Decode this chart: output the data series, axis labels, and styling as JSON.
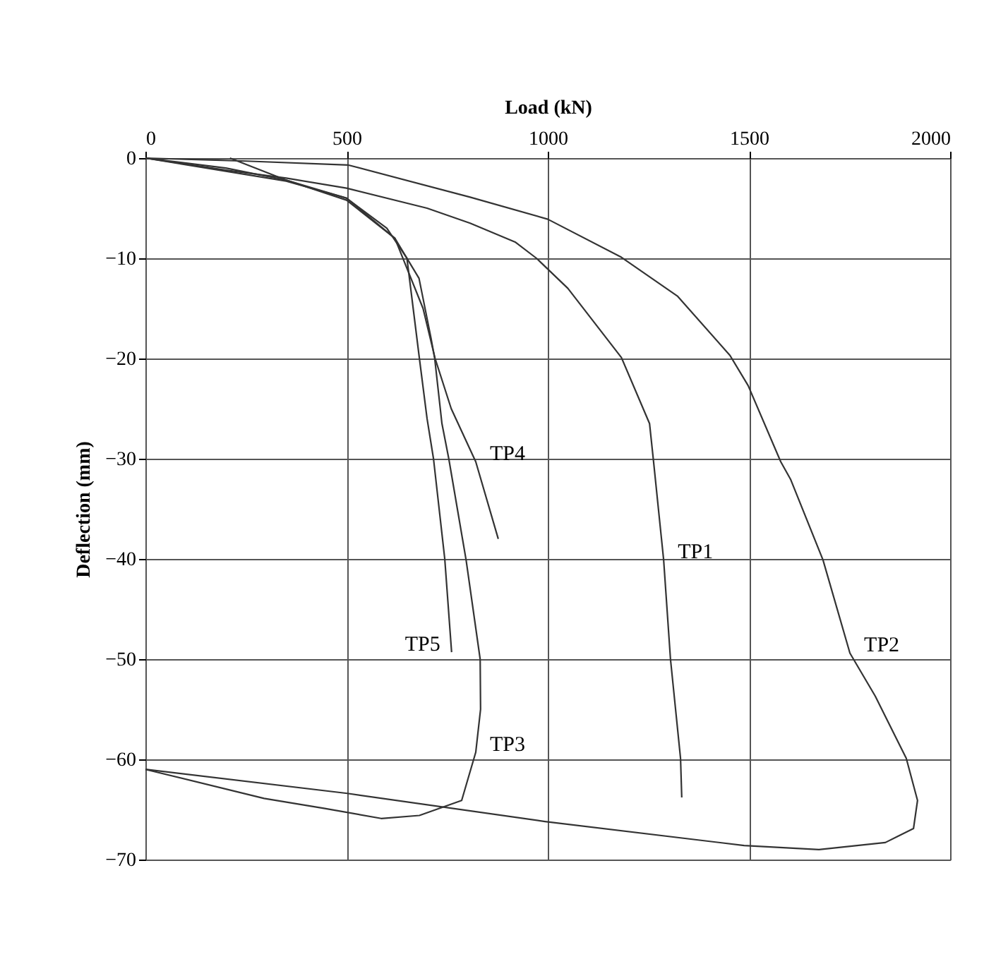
{
  "chart_data": {
    "type": "line",
    "xlabel": "Load (kN)",
    "ylabel": "Deflection (mm)",
    "xlim": [
      0,
      2000
    ],
    "xticks": [
      0,
      500,
      1000,
      1500,
      2000
    ],
    "ylim": [
      -70,
      0
    ],
    "yticks": [
      -70,
      -60,
      -50,
      -40,
      -30,
      -20,
      -10,
      0
    ],
    "grid": true,
    "line_style": "solid",
    "marker": "none",
    "legend": false,
    "series": [
      {
        "color": "#333333",
        "x": [
          0,
          200,
          350,
          500,
          700,
          807,
          920,
          972,
          1050,
          1183,
          1253,
          1263,
          1288,
          1305,
          1330,
          1333
        ],
        "values": [
          0,
          -1.2,
          -2,
          -3,
          -5,
          -6.5,
          -8.4,
          -10,
          -13,
          -19.9,
          -26.5,
          -30.3,
          -40.1,
          -50,
          -59.9,
          -63.8
        ]
      },
      {
        "color": "#333333",
        "x": [
          0,
          250,
          505,
          807,
          1000,
          1183,
          1323,
          1453,
          1498,
          1579,
          1604,
          1684,
          1751,
          1814,
          1891,
          1919,
          1909,
          1839,
          1674,
          1488,
          993,
          502,
          0
        ],
        "values": [
          0,
          -0.3,
          -0.7,
          -3.9,
          -6.1,
          -9.9,
          -13.8,
          -19.7,
          -22.7,
          -30.3,
          -32.1,
          -40.1,
          -49.4,
          -53.7,
          -59.9,
          -64.1,
          -66.9,
          -68.3,
          -69,
          -68.6,
          -66.2,
          -63.4,
          -61
        ]
      },
      {
        "color": "#333333",
        "x": [
          210,
          350,
          500,
          620,
          680,
          710,
          719,
          737,
          754,
          797,
          832,
          833,
          821,
          786,
          681,
          586,
          446,
          295,
          0
        ],
        "values": [
          0,
          -2.2,
          -4.2,
          -8,
          -12,
          -18,
          -20,
          -26.5,
          -30,
          -40.1,
          -50,
          -55,
          -59.3,
          -64.1,
          -65.6,
          -65.9,
          -64.9,
          -63.9,
          -61
        ]
      },
      {
        "color": "#333333",
        "x": [
          0,
          350,
          500,
          620,
          690,
          720,
          760,
          821,
          877
        ],
        "values": [
          0,
          -2.3,
          -4,
          -8,
          -15,
          -20,
          -25,
          -30.3,
          -38
        ]
      },
      {
        "color": "#333333",
        "x": [
          0,
          200,
          350,
          500,
          600,
          650,
          681,
          700,
          716,
          744,
          761
        ],
        "values": [
          0,
          -1,
          -2.2,
          -4,
          -7,
          -10,
          -20,
          -26,
          -30,
          -40,
          -49.3
        ]
      }
    ],
    "annotations": [
      {
        "text": "TP1",
        "x": 1288,
        "y": -40.1
      },
      {
        "text": "TP2",
        "x": 1751,
        "y": -49.4
      },
      {
        "text": "TP3",
        "x": 821,
        "y": -59.3
      },
      {
        "text": "TP4",
        "x": 821,
        "y": -30.3
      },
      {
        "text": "TP5",
        "x": 761,
        "y": -49.3
      }
    ]
  }
}
